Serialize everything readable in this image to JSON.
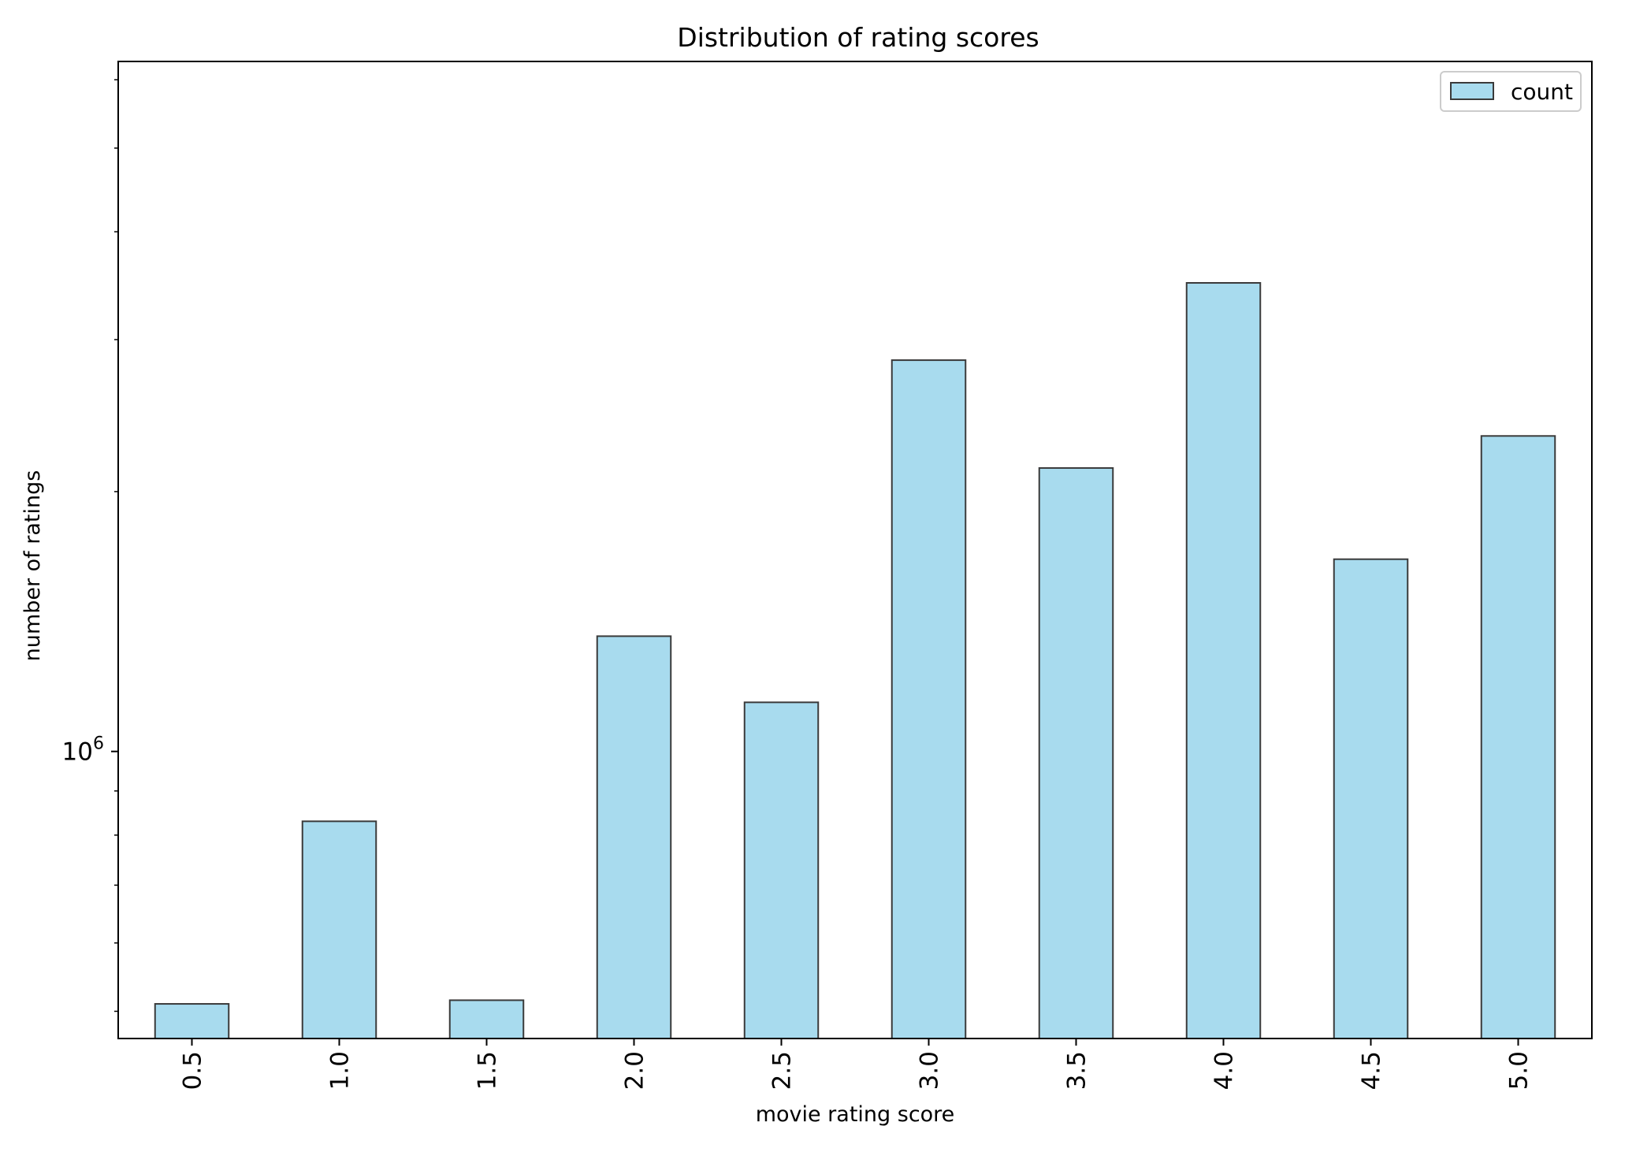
{
  "chart_data": {
    "type": "bar",
    "title": "Distribution of rating scores",
    "xlabel": "movie rating score",
    "ylabel": "number of ratings",
    "yscale": "log",
    "ylim": [
      465000,
      6300000
    ],
    "y_tick_labels": [
      {
        "value": 1000000,
        "base": "10",
        "exponent": "6"
      }
    ],
    "categories": [
      "0.5",
      "1.0",
      "1.5",
      "2.0",
      "2.5",
      "3.0",
      "3.5",
      "4.0",
      "4.5",
      "5.0"
    ],
    "series": [
      {
        "name": "count",
        "values": [
          510000,
          830000,
          515000,
          1360000,
          1140000,
          2840000,
          2130000,
          3490000,
          1670000,
          2320000
        ]
      }
    ],
    "legend_position": "upper right",
    "grid": false,
    "bar_color": "#a8dbee",
    "bar_edge_color": "#3a3a3a"
  }
}
